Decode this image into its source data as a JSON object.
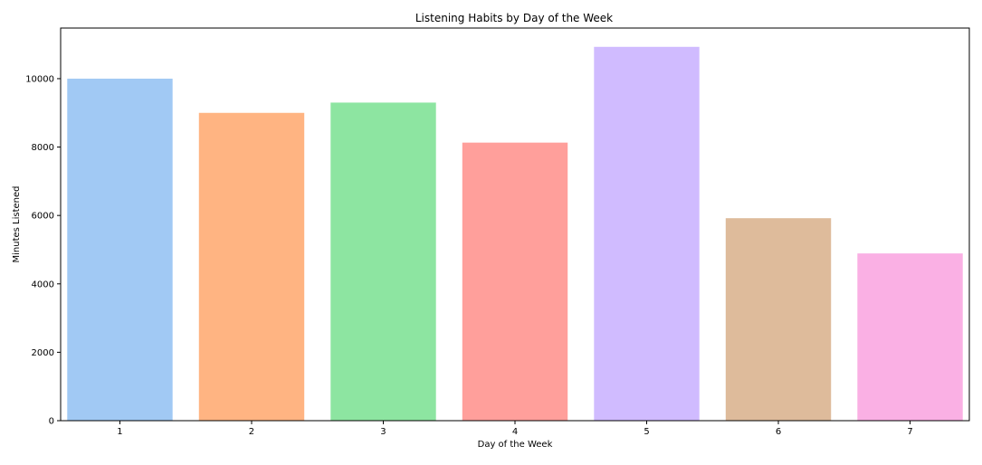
{
  "chart_data": {
    "type": "bar",
    "title": "Listening Habits by Day of the Week",
    "xlabel": "Day of the Week",
    "ylabel": "Minutes Listened",
    "categories": [
      "1",
      "2",
      "3",
      "4",
      "5",
      "6",
      "7"
    ],
    "values": [
      10000,
      9000,
      9300,
      8130,
      10930,
      5920,
      4890
    ],
    "colors": [
      "#a1c9f4",
      "#ffb482",
      "#8de5a1",
      "#ff9f9b",
      "#d0bbff",
      "#debb9b",
      "#fab0e4"
    ],
    "ylim": [
      0,
      11480
    ],
    "yticks": [
      0,
      2000,
      4000,
      6000,
      8000,
      10000
    ],
    "ytick_labels": [
      "0",
      "2000",
      "4000",
      "6000",
      "8000",
      "10000"
    ],
    "grid": false,
    "legend": "none"
  }
}
